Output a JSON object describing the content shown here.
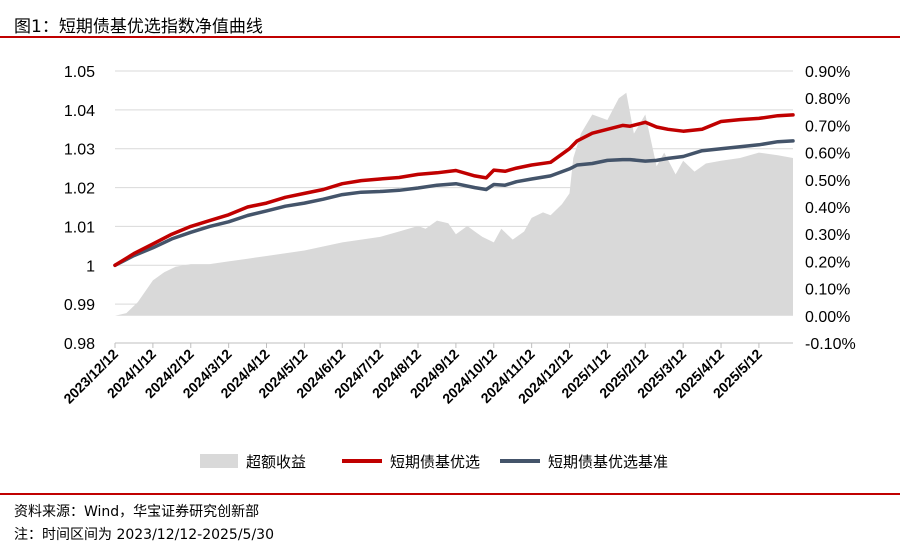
{
  "header": {
    "title": "图1：短期债基优选指数净值曲线"
  },
  "footer": {
    "source": "资料来源：Wind，华宝证券研究创新部",
    "note": "注：时间区间为 2023/12/12-2025/5/30"
  },
  "chart_data": {
    "type": "line",
    "x_ticks": [
      "2023/12/12",
      "2024/1/12",
      "2024/2/12",
      "2024/3/12",
      "2024/4/12",
      "2024/5/12",
      "2024/6/12",
      "2024/7/12",
      "2024/8/12",
      "2024/9/12",
      "2024/10/12",
      "2024/11/12",
      "2024/12/12",
      "2025/1/12",
      "2025/2/12",
      "2025/3/12",
      "2025/4/12",
      "2025/5/12"
    ],
    "y_left_ticks": [
      "1.05",
      "1.04",
      "1.03",
      "1.02",
      "1.01",
      "1",
      "0.99",
      "0.98"
    ],
    "y_left_lim": [
      0.98,
      1.05
    ],
    "y_right_ticks": [
      "0.90%",
      "0.80%",
      "0.70%",
      "0.60%",
      "0.50%",
      "0.40%",
      "0.30%",
      "0.20%",
      "0.10%",
      "0.00%",
      "-0.10%"
    ],
    "y_right_lim": [
      -0.1,
      0.9
    ],
    "grid": "horizontal",
    "legend_position": "bottom",
    "colors": {
      "excess": "#d9d9d9",
      "index": "#c00000",
      "benchmark": "#44546a"
    },
    "series": [
      {
        "name": "超额收益",
        "type": "area",
        "axis": "right",
        "x": [
          0,
          0.3,
          0.6,
          1,
          1.3,
          1.6,
          2,
          2.5,
          3,
          3.5,
          4,
          5,
          6,
          7,
          7.5,
          8,
          8.2,
          8.5,
          8.8,
          9,
          9.3,
          9.5,
          9.7,
          10,
          10.2,
          10.5,
          10.8,
          11,
          11.3,
          11.5,
          11.8,
          12,
          12.1,
          12.3,
          12.6,
          13,
          13.3,
          13.5,
          13.7,
          14,
          14.3,
          14.5,
          14.8,
          15,
          15.3,
          15.6,
          16,
          16.5,
          17,
          17.5,
          17.9
        ],
        "values": [
          0,
          0.01,
          0.05,
          0.13,
          0.16,
          0.18,
          0.19,
          0.19,
          0.2,
          0.21,
          0.22,
          0.24,
          0.27,
          0.29,
          0.31,
          0.33,
          0.32,
          0.35,
          0.34,
          0.3,
          0.33,
          0.31,
          0.29,
          0.27,
          0.32,
          0.28,
          0.31,
          0.36,
          0.38,
          0.37,
          0.41,
          0.45,
          0.58,
          0.67,
          0.74,
          0.72,
          0.8,
          0.82,
          0.67,
          0.74,
          0.55,
          0.6,
          0.52,
          0.57,
          0.53,
          0.56,
          0.57,
          0.58,
          0.6,
          0.59,
          0.58
        ]
      },
      {
        "name": "短期债基优选",
        "type": "line",
        "axis": "left",
        "x": [
          0,
          0.5,
          1,
          1.5,
          2,
          2.5,
          3,
          3.5,
          4,
          4.5,
          5,
          5.5,
          6,
          6.5,
          7,
          7.5,
          8,
          8.5,
          9,
          9.5,
          9.8,
          10,
          10.3,
          10.6,
          11,
          11.5,
          12,
          12.2,
          12.6,
          13,
          13.4,
          13.6,
          14,
          14.3,
          14.6,
          15,
          15.5,
          16,
          16.5,
          17,
          17.5,
          17.9
        ],
        "values": [
          1.0,
          1.003,
          1.0055,
          1.008,
          1.01,
          1.0115,
          1.013,
          1.015,
          1.016,
          1.0175,
          1.0185,
          1.0195,
          1.021,
          1.0218,
          1.0222,
          1.0226,
          1.0234,
          1.0238,
          1.0244,
          1.023,
          1.0225,
          1.0245,
          1.0242,
          1.025,
          1.0258,
          1.0265,
          1.03,
          1.032,
          1.034,
          1.035,
          1.036,
          1.0358,
          1.0368,
          1.0356,
          1.035,
          1.0345,
          1.035,
          1.037,
          1.0375,
          1.0378,
          1.0385,
          1.0387
        ]
      },
      {
        "name": "短期债基优选基准",
        "type": "line",
        "axis": "left",
        "x": [
          0,
          0.5,
          1,
          1.5,
          2,
          2.5,
          3,
          3.5,
          4,
          4.5,
          5,
          5.5,
          6,
          6.5,
          7,
          7.5,
          8,
          8.5,
          9,
          9.5,
          9.8,
          10,
          10.3,
          10.6,
          11,
          11.5,
          12,
          12.2,
          12.6,
          13,
          13.4,
          13.6,
          14,
          14.3,
          14.6,
          15,
          15.5,
          16,
          16.5,
          17,
          17.5,
          17.9
        ],
        "values": [
          1.0,
          1.0025,
          1.0045,
          1.0068,
          1.0085,
          1.01,
          1.0112,
          1.0128,
          1.014,
          1.0152,
          1.016,
          1.017,
          1.0182,
          1.0188,
          1.019,
          1.0193,
          1.0199,
          1.0206,
          1.021,
          1.02,
          1.0195,
          1.0208,
          1.0206,
          1.0215,
          1.0222,
          1.023,
          1.0248,
          1.0258,
          1.0262,
          1.027,
          1.0272,
          1.0272,
          1.0268,
          1.027,
          1.0275,
          1.028,
          1.0295,
          1.03,
          1.0305,
          1.031,
          1.0318,
          1.032
        ]
      }
    ]
  }
}
